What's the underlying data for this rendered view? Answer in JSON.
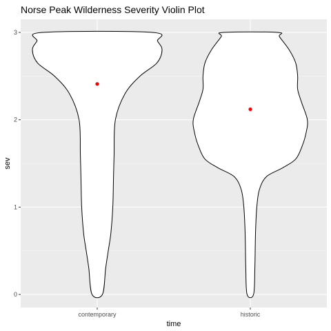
{
  "chart_data": {
    "type": "violin",
    "title": "Norse Peak Wilderness Severity Violin Plot",
    "xlabel": "time",
    "ylabel": "sev",
    "categories": [
      "contemporary",
      "historic"
    ],
    "ylim": [
      -0.15,
      3.15
    ],
    "yticks": [
      0,
      1,
      2,
      3
    ],
    "grid": true,
    "legend": "none",
    "colors": {
      "panel": "#ebebeb",
      "grid_major": "#ffffff",
      "grid_minor": "#f5f5f5",
      "violin_fill": "#ffffff",
      "violin_outline": "#000000",
      "mean_point": "#ff0000",
      "tick_label": "#4d4d4d"
    },
    "means": [
      2.41,
      2.12
    ],
    "density_width_fraction": [
      [
        [
          0.0,
          0.08
        ],
        [
          0.3,
          0.13
        ],
        [
          0.5,
          0.17
        ],
        [
          0.7,
          0.21
        ],
        [
          1.0,
          0.24
        ],
        [
          1.3,
          0.25
        ],
        [
          1.6,
          0.26
        ],
        [
          2.0,
          0.28
        ],
        [
          2.3,
          0.43
        ],
        [
          2.5,
          0.66
        ],
        [
          2.65,
          0.92
        ],
        [
          2.8,
          1.0
        ],
        [
          2.9,
          0.93
        ],
        [
          3.0,
          0.85
        ]
      ],
      [
        [
          0.0,
          0.05
        ],
        [
          0.3,
          0.07
        ],
        [
          0.7,
          0.08
        ],
        [
          1.0,
          0.1
        ],
        [
          1.2,
          0.14
        ],
        [
          1.35,
          0.25
        ],
        [
          1.45,
          0.5
        ],
        [
          1.55,
          0.7
        ],
        [
          1.7,
          0.8
        ],
        [
          1.85,
          0.86
        ],
        [
          2.0,
          0.88
        ],
        [
          2.2,
          0.79
        ],
        [
          2.35,
          0.73
        ],
        [
          2.5,
          0.73
        ],
        [
          2.65,
          0.7
        ],
        [
          2.8,
          0.6
        ],
        [
          2.95,
          0.45
        ],
        [
          3.0,
          0.42
        ]
      ]
    ]
  }
}
